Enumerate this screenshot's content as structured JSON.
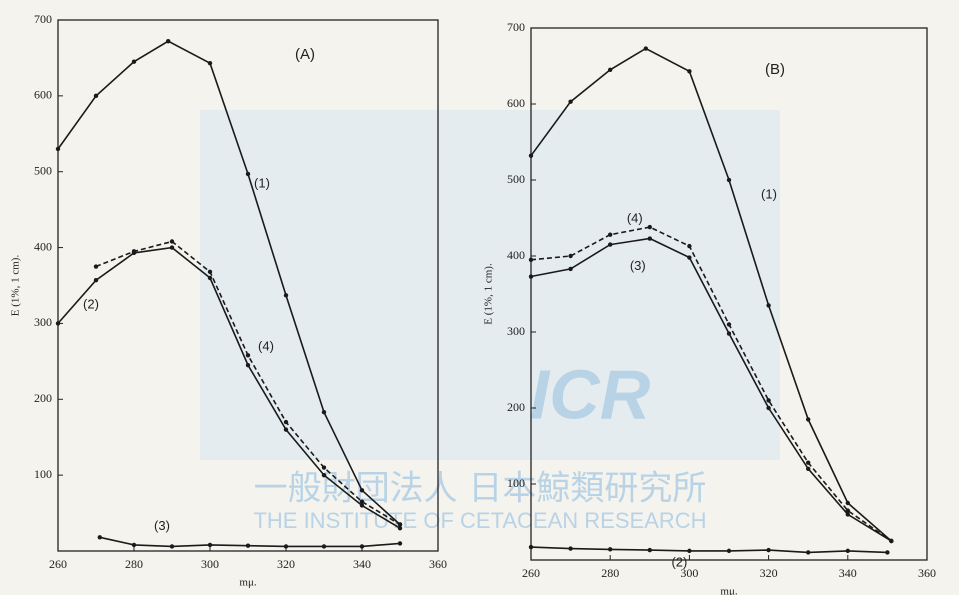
{
  "chart_data": [
    {
      "type": "line",
      "title": "(A)",
      "x_label": "mμ.",
      "y_label": "E (1%, 1 cm).",
      "xlim": [
        260,
        360
      ],
      "xticks": [
        260,
        280,
        300,
        320,
        340,
        360
      ],
      "ylim": [
        0,
        700
      ],
      "yticks": [
        100,
        200,
        300,
        400,
        500,
        600,
        700
      ],
      "series": [
        {
          "name": "(1)",
          "color": "#1a1a1a",
          "dashed": false,
          "x": [
            260,
            270,
            280,
            289,
            300,
            310,
            320,
            330,
            340,
            350
          ],
          "values": [
            530,
            600,
            645,
            672,
            643,
            497,
            337,
            183,
            80,
            35
          ]
        },
        {
          "name": "(2)",
          "color": "#1a1a1a",
          "dashed": false,
          "x": [
            260,
            270,
            280,
            290,
            300,
            310,
            320,
            330,
            340,
            350
          ],
          "values": [
            300,
            357,
            393,
            400,
            360,
            245,
            160,
            100,
            60,
            30
          ]
        },
        {
          "name": "(3)",
          "color": "#1a1a1a",
          "dashed": false,
          "x": [
            271,
            280,
            290,
            300,
            310,
            320,
            330,
            340,
            350
          ],
          "values": [
            18,
            8,
            6,
            8,
            7,
            6,
            6,
            6,
            10
          ]
        },
        {
          "name": "(4)",
          "color": "#1a1a1a",
          "dashed": true,
          "x": [
            270,
            280,
            290,
            300,
            310,
            320,
            330,
            340,
            350
          ],
          "values": [
            375,
            395,
            408,
            368,
            258,
            170,
            110,
            65,
            35
          ]
        }
      ]
    },
    {
      "type": "line",
      "title": "(B)",
      "x_label": "mμ.",
      "y_label": "E (1%, 1 cm).",
      "xlim": [
        260,
        360
      ],
      "xticks": [
        260,
        280,
        300,
        320,
        340,
        360
      ],
      "ylim": [
        0,
        700
      ],
      "yticks": [
        100,
        200,
        300,
        400,
        500,
        600,
        700
      ],
      "series": [
        {
          "name": "(1)",
          "color": "#1a1a1a",
          "dashed": false,
          "x": [
            260,
            270,
            280,
            289,
            300,
            310,
            320,
            330,
            340,
            351
          ],
          "values": [
            532,
            603,
            645,
            673,
            643,
            500,
            335,
            185,
            75,
            25
          ]
        },
        {
          "name": "(2)",
          "color": "#1a1a1a",
          "dashed": false,
          "x": [
            260,
            270,
            280,
            290,
            300,
            310,
            320,
            330,
            340,
            350
          ],
          "values": [
            17,
            15,
            14,
            13,
            12,
            12,
            13,
            10,
            12,
            10
          ]
        },
        {
          "name": "(3)",
          "color": "#1a1a1a",
          "dashed": false,
          "x": [
            260,
            270,
            280,
            290,
            300,
            310,
            320,
            330,
            340,
            351
          ],
          "values": [
            373,
            383,
            415,
            423,
            398,
            298,
            200,
            120,
            60,
            25
          ]
        },
        {
          "name": "(4)",
          "color": "#1a1a1a",
          "dashed": true,
          "x": [
            260,
            270,
            280,
            290,
            300,
            310,
            320,
            330,
            340,
            351
          ],
          "values": [
            395,
            400,
            428,
            438,
            413,
            310,
            210,
            128,
            65,
            25
          ]
        }
      ]
    }
  ],
  "watermark": {
    "logo": "ICR",
    "text_ja": "一般財団法人 日本鯨類研究所",
    "text_en": "THE INSTITUTE OF CETACEAN RESEARCH"
  }
}
